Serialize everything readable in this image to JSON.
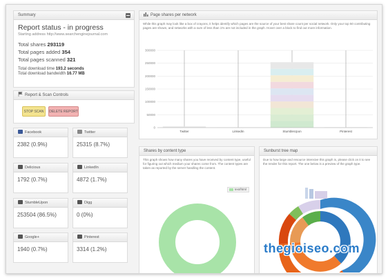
{
  "summary": {
    "header": "Summary",
    "title": "Report status - in progress",
    "starting_address": "Starting address http://www.searchenginejournal.com",
    "total_shares_label": "Total shares",
    "total_shares": "293119",
    "pages_added_label": "Total pages added",
    "pages_added": "354",
    "pages_scanned_label": "Total pages scanned",
    "pages_scanned": "321",
    "download_time_label": "Total download time",
    "download_time": "193.2 seconds",
    "bandwidth_label": "Total download bandwidth",
    "bandwidth": "16.77 MB"
  },
  "controls": {
    "header": "Report & Scan Controls",
    "stop_label": "STOP SCAN",
    "delete_label": "DELETE REPORT"
  },
  "networks": [
    {
      "name": "Facebook",
      "value": "2382 (0.9%)",
      "icon": "facebook-icon",
      "color": "#3b5998"
    },
    {
      "name": "Twitter",
      "value": "25315 (8.7%)",
      "icon": "twitter-icon",
      "color": "#888888"
    },
    {
      "name": "Delicious",
      "value": "1792 (0.7%)",
      "icon": "delicious-icon",
      "color": "#555555"
    },
    {
      "name": "LinkedIn",
      "value": "4872 (1.7%)",
      "icon": "linkedin-icon",
      "color": "#555555"
    },
    {
      "name": "StumbleUpon",
      "value": "253504 (86.5%)",
      "icon": "stumbleupon-icon",
      "color": "#555555"
    },
    {
      "name": "Digg",
      "value": "0 (0%)",
      "icon": "digg-icon",
      "color": "#555555"
    },
    {
      "name": "Google+",
      "value": "1940 (0.7%)",
      "icon": "googleplus-icon",
      "color": "#555555"
    },
    {
      "name": "Pinterest",
      "value": "3314 (1.2%)",
      "icon": "pinterest-icon",
      "color": "#555555"
    }
  ],
  "network_chart": {
    "header": "Page shares per network",
    "description": "While this graph may look like a box of crayons, it helps identify which pages are the source of your best share count per social network. Only your top 50 contributing pages are shown, and networks with a sum of less than 1% are not included in the graph. Hover over a block to find out more information.",
    "chart_data": {
      "type": "bar",
      "stacked": true,
      "categories": [
        "Twitter",
        "LinkedIn",
        "StumbleUpon",
        "Pinterest"
      ],
      "values": [
        4500,
        1200,
        254000,
        1500
      ],
      "ylim": [
        0,
        300000
      ],
      "yticks": [
        "300000",
        "250000",
        "200000",
        "150000",
        "100000",
        "50000",
        "0"
      ],
      "grid": true,
      "segment_colors": [
        "#cfe9cf",
        "#d9ecd2",
        "#e3efd4",
        "#f2e6d6",
        "#e6dcef",
        "#dce6f2",
        "#f2d9df",
        "#f5edd3",
        "#d9eef0",
        "#e8e8e8"
      ]
    }
  },
  "content_type": {
    "header": "Shares by content type",
    "description": "This graph shows how many shares you have received by content type, useful for figuring out which medium your shares come from. The content types are taken as reported by the server handling the content.",
    "legend": "text/html",
    "chart_data": {
      "type": "pie",
      "labels": [
        "text/html"
      ],
      "values": [
        100
      ],
      "colors": [
        "#a8e3a8"
      ]
    }
  },
  "sunburst": {
    "header": "Sunburst tree map",
    "description": "Due to how large and resource intensive this graph is, please click on it to see the render for this report. The one below is a preview of the graph type."
  },
  "watermark": "thegioiseo.com"
}
